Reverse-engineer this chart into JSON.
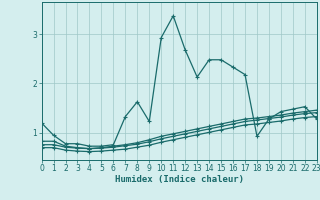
{
  "title": "",
  "xlabel": "Humidex (Indice chaleur)",
  "background_color": "#d4eeee",
  "grid_color": "#a0c8c8",
  "line_color": "#1a6b6b",
  "x_values": [
    0,
    1,
    2,
    3,
    4,
    5,
    6,
    7,
    8,
    9,
    10,
    11,
    12,
    13,
    14,
    15,
    16,
    17,
    18,
    19,
    20,
    21,
    22,
    23
  ],
  "series1": [
    1.2,
    0.95,
    0.78,
    0.78,
    0.73,
    0.73,
    0.76,
    1.33,
    1.63,
    1.23,
    2.93,
    3.37,
    2.68,
    2.13,
    2.48,
    2.48,
    2.33,
    2.18,
    0.93,
    1.28,
    1.43,
    1.48,
    1.53,
    1.28
  ],
  "series2": [
    0.83,
    0.83,
    0.73,
    0.7,
    0.68,
    0.7,
    0.73,
    0.76,
    0.8,
    0.86,
    0.93,
    0.98,
    1.03,
    1.08,
    1.13,
    1.18,
    1.23,
    1.28,
    1.3,
    1.33,
    1.36,
    1.4,
    1.43,
    1.46
  ],
  "series3": [
    0.76,
    0.76,
    0.71,
    0.69,
    0.68,
    0.69,
    0.71,
    0.74,
    0.77,
    0.82,
    0.88,
    0.93,
    0.98,
    1.03,
    1.08,
    1.13,
    1.18,
    1.23,
    1.26,
    1.29,
    1.32,
    1.36,
    1.39,
    1.41
  ],
  "series4": [
    0.7,
    0.7,
    0.65,
    0.63,
    0.62,
    0.63,
    0.65,
    0.67,
    0.71,
    0.75,
    0.81,
    0.86,
    0.91,
    0.96,
    1.01,
    1.06,
    1.11,
    1.16,
    1.18,
    1.21,
    1.24,
    1.28,
    1.31,
    1.33
  ],
  "xlim": [
    0,
    23
  ],
  "ylim": [
    0.45,
    3.65
  ],
  "yticks": [
    1,
    2,
    3
  ],
  "xtick_labels": [
    "0",
    "1",
    "2",
    "3",
    "4",
    "5",
    "6",
    "7",
    "8",
    "9",
    "10",
    "11",
    "12",
    "13",
    "14",
    "15",
    "16",
    "17",
    "18",
    "19",
    "20",
    "21",
    "22",
    "23"
  ],
  "marker": "+",
  "markersize": 3.5,
  "linewidth": 0.9,
  "tick_fontsize": 5.5,
  "xlabel_fontsize": 6.5
}
